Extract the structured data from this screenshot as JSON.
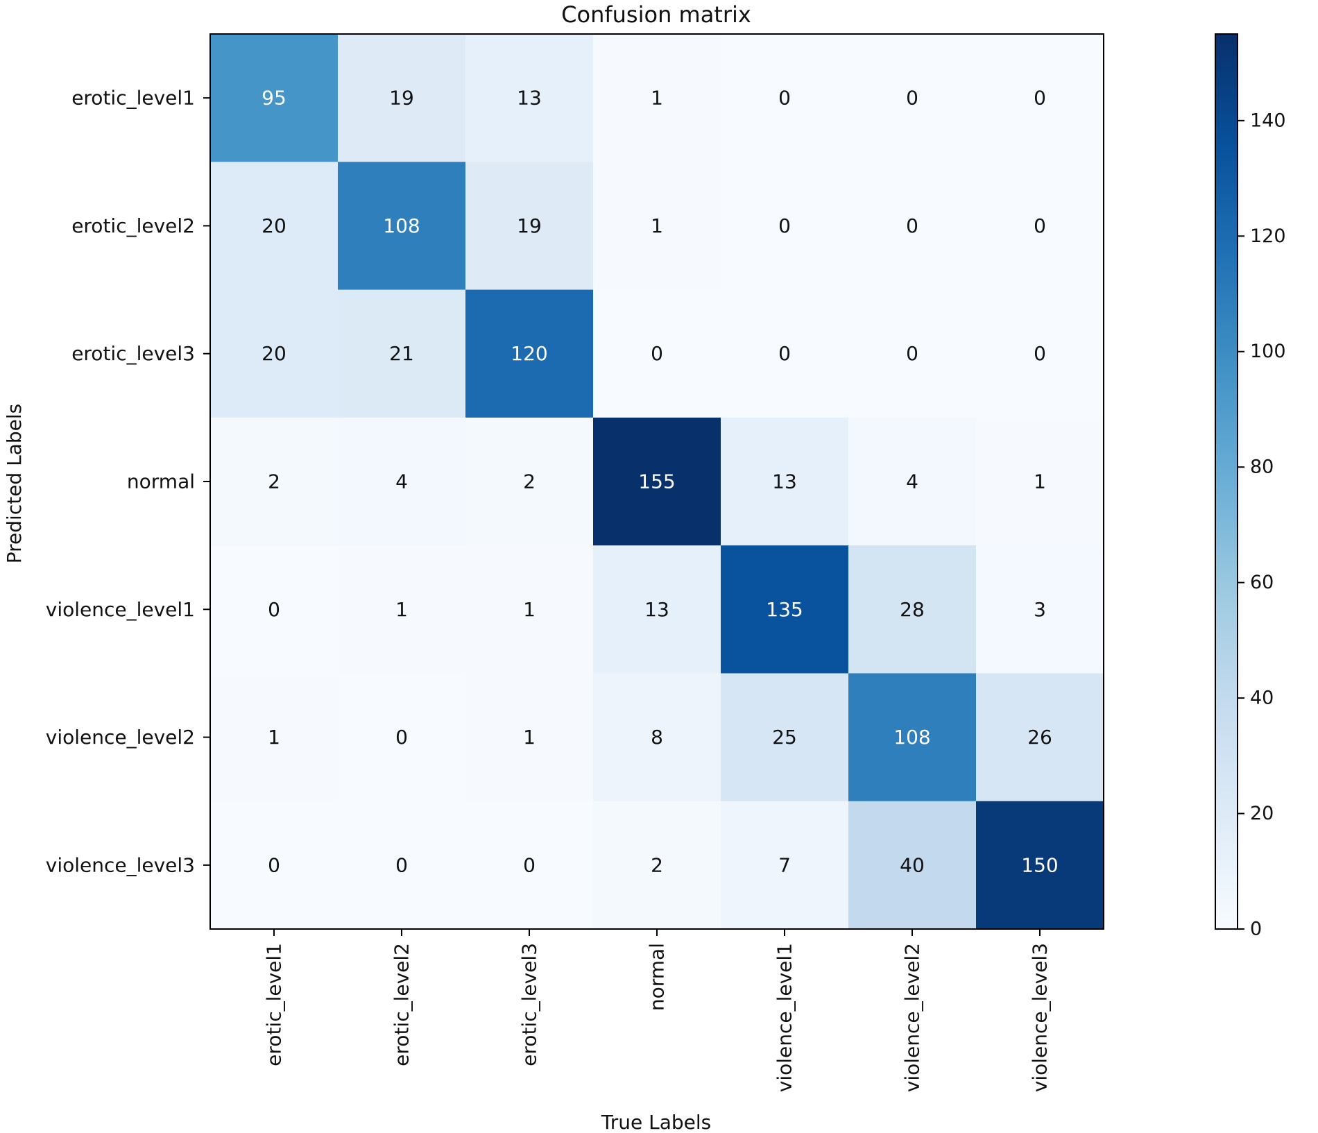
{
  "chart_data": {
    "type": "heatmap",
    "title": "Confusion matrix",
    "xlabel": "True Labels",
    "ylabel": "Predicted Labels",
    "x_categories": [
      "erotic_level1",
      "erotic_level2",
      "erotic_level3",
      "normal",
      "violence_level1",
      "violence_level2",
      "violence_level3"
    ],
    "y_categories": [
      "erotic_level1",
      "erotic_level2",
      "erotic_level3",
      "normal",
      "violence_level1",
      "violence_level2",
      "violence_level3"
    ],
    "values": [
      [
        95,
        19,
        13,
        1,
        0,
        0,
        0
      ],
      [
        20,
        108,
        19,
        1,
        0,
        0,
        0
      ],
      [
        20,
        21,
        120,
        0,
        0,
        0,
        0
      ],
      [
        2,
        4,
        2,
        155,
        13,
        4,
        1
      ],
      [
        0,
        1,
        1,
        13,
        135,
        28,
        3
      ],
      [
        1,
        0,
        1,
        8,
        25,
        108,
        26
      ],
      [
        0,
        0,
        0,
        2,
        7,
        40,
        150
      ]
    ],
    "colormap": "Blues",
    "colormap_stops": [
      "#f7fbff",
      "#deebf7",
      "#c6dbef",
      "#9ecae1",
      "#6baed6",
      "#4292c6",
      "#2171b5",
      "#08519c",
      "#08306b"
    ],
    "colorbar": {
      "range": [
        0,
        155
      ],
      "ticks": [
        0,
        20,
        40,
        60,
        80,
        100,
        120,
        140
      ]
    }
  }
}
